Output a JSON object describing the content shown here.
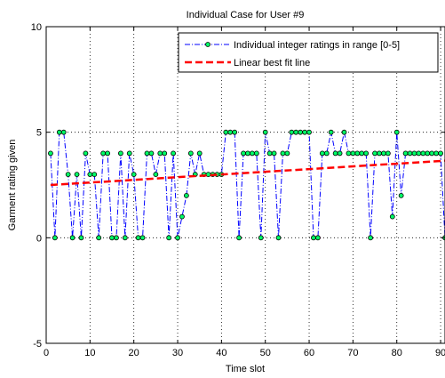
{
  "chart_data": {
    "type": "line",
    "title": "Individual Case for User #9",
    "xlabel": "Time slot",
    "ylabel": "Garment rating given",
    "xlim": [
      0,
      91
    ],
    "ylim": [
      -5,
      10
    ],
    "xticks": [
      0,
      10,
      20,
      30,
      40,
      50,
      60,
      70,
      80,
      90
    ],
    "yticks": [
      -5,
      0,
      5,
      10
    ],
    "grid": true,
    "legend_position": "top-right",
    "series": [
      {
        "name": "Individual integer ratings in range [0-5]",
        "style": "dash-dot with circle markers",
        "color": "#0000ff",
        "marker_face": "#00ff66",
        "x": [
          1,
          2,
          3,
          4,
          5,
          6,
          7,
          8,
          9,
          10,
          11,
          12,
          13,
          14,
          15,
          16,
          17,
          18,
          19,
          20,
          21,
          22,
          23,
          24,
          25,
          26,
          27,
          28,
          29,
          30,
          31,
          32,
          33,
          34,
          35,
          36,
          37,
          38,
          39,
          40,
          41,
          42,
          43,
          44,
          45,
          46,
          47,
          48,
          49,
          50,
          51,
          52,
          53,
          54,
          55,
          56,
          57,
          58,
          59,
          60,
          61,
          62,
          63,
          64,
          65,
          66,
          67,
          68,
          69,
          70,
          71,
          72,
          73,
          74,
          75,
          76,
          77,
          78,
          79,
          80,
          81,
          82,
          83,
          84,
          85,
          86,
          87,
          88,
          89,
          90,
          91
        ],
        "y": [
          4,
          0,
          5,
          5,
          3,
          0,
          3,
          0,
          4,
          3,
          3,
          0,
          4,
          4,
          0,
          0,
          4,
          0,
          4,
          3,
          0,
          0,
          4,
          4,
          3,
          4,
          4,
          0,
          4,
          0,
          1,
          2,
          4,
          3,
          4,
          3,
          3,
          3,
          3,
          3,
          5,
          5,
          5,
          0,
          4,
          4,
          4,
          4,
          0,
          5,
          4,
          4,
          0,
          4,
          4,
          5,
          5,
          5,
          5,
          5,
          0,
          0,
          4,
          4,
          5,
          4,
          4,
          5,
          4,
          4,
          4,
          4,
          4,
          0,
          4,
          4,
          4,
          4,
          1,
          5,
          2,
          4,
          4,
          4,
          4,
          4,
          4,
          4,
          4,
          4,
          0
        ]
      },
      {
        "name": "Linear best fit line",
        "style": "dashed",
        "color": "#ff0000",
        "x": [
          1,
          91
        ],
        "y": [
          2.5,
          3.65
        ]
      }
    ]
  }
}
